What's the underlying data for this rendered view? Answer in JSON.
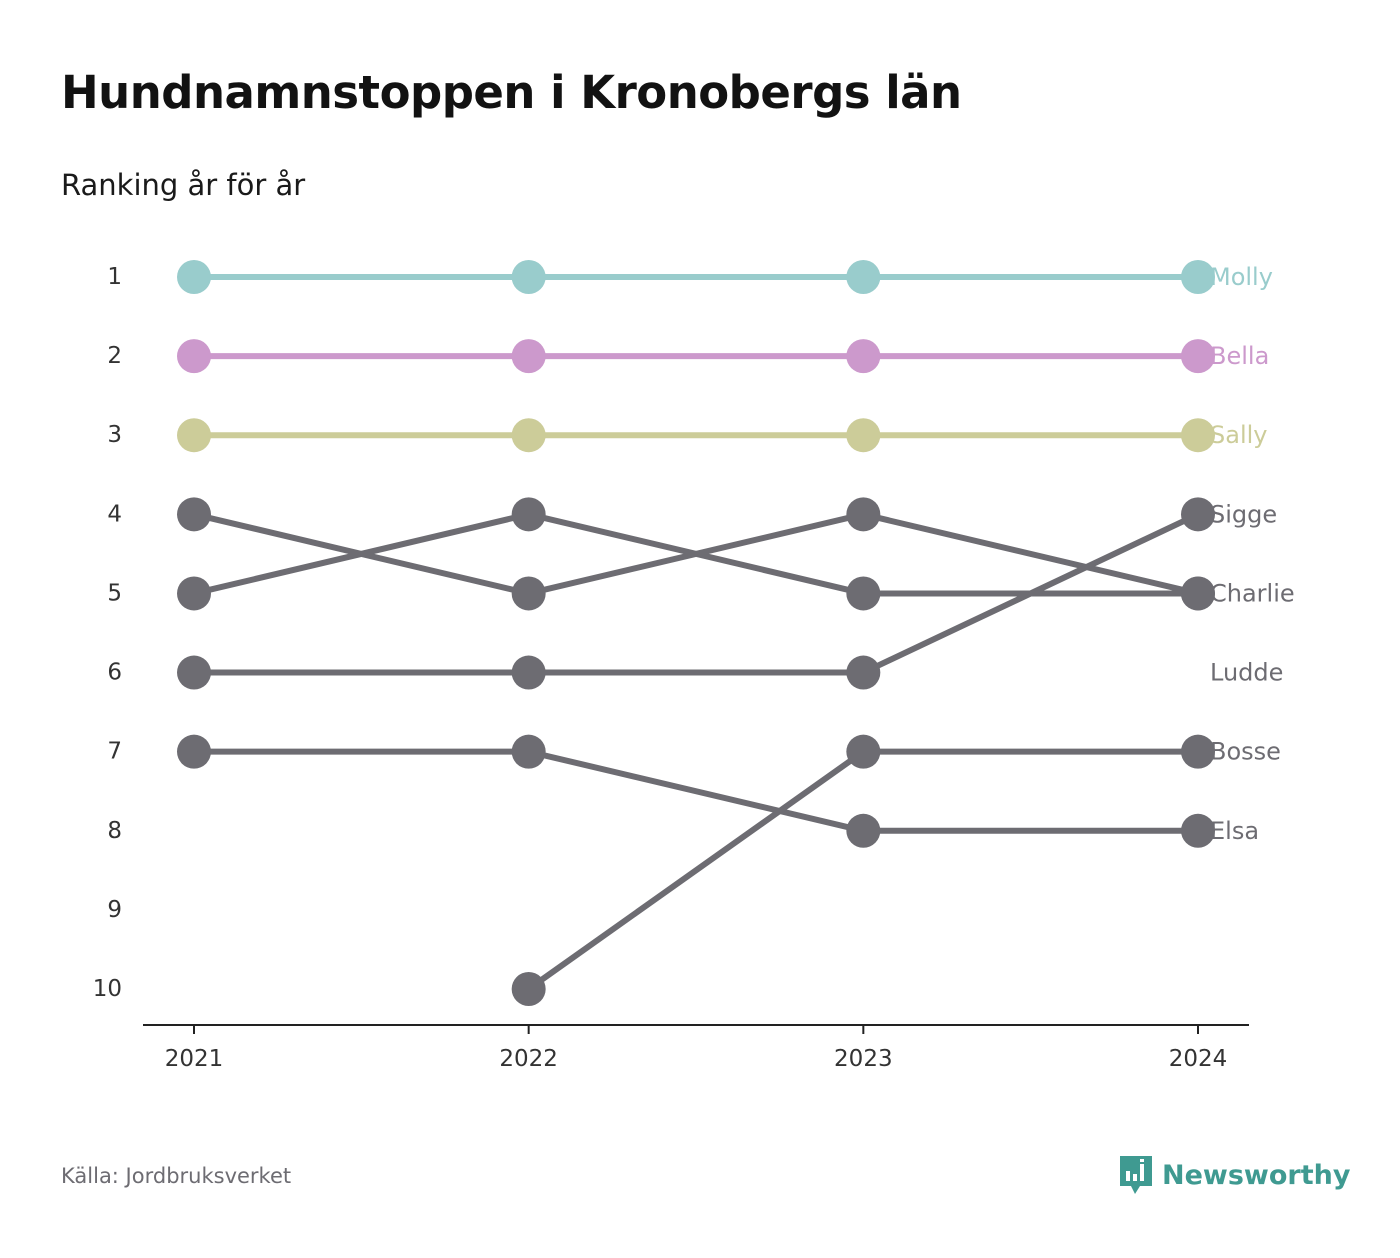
{
  "header": {
    "title": "Hundnamnstoppen i Kronobergs län",
    "subtitle": "Ranking år för år"
  },
  "footer": {
    "source": "Källa: Jordbruksverket",
    "brand": "Newsworthy",
    "brand_icon": "newsworthy-logo-icon",
    "brand_color": "#3f9a91"
  },
  "chart_data": {
    "type": "line",
    "x": [
      "2021",
      "2022",
      "2023",
      "2024"
    ],
    "y_ticks": [
      "1",
      "2",
      "3",
      "4",
      "5",
      "6",
      "7",
      "8",
      "9",
      "10"
    ],
    "ylim": [
      1,
      10
    ],
    "y_reversed": true,
    "grid": false,
    "series": [
      {
        "name": "Molly",
        "color": "#99cccc",
        "values": [
          1,
          1,
          1,
          1
        ]
      },
      {
        "name": "Bella",
        "color": "#cc99cc",
        "values": [
          2,
          2,
          2,
          2
        ]
      },
      {
        "name": "Sally",
        "color": "#cccc99",
        "values": [
          3,
          3,
          3,
          3
        ]
      },
      {
        "name": "Sigge",
        "color": "#6d6c72",
        "values": [
          6,
          6,
          6,
          4
        ]
      },
      {
        "name": "Charlie",
        "color": "#6d6c72",
        "values": [
          4,
          5,
          4,
          5
        ]
      },
      {
        "name": "Ludde",
        "color": "#6d6c72",
        "values": [
          5,
          4,
          5,
          5
        ]
      },
      {
        "name": "Bosse",
        "color": "#6d6c72",
        "values": [
          null,
          10,
          7,
          7
        ]
      },
      {
        "name": "Elsa",
        "color": "#6d6c72",
        "values": [
          7,
          7,
          8,
          8
        ]
      }
    ],
    "end_labels": [
      {
        "text": "Molly",
        "rank": 1,
        "color": "#99cccc"
      },
      {
        "text": "Bella",
        "rank": 2,
        "color": "#cc99cc"
      },
      {
        "text": "Sally",
        "rank": 3,
        "color": "#cccc99"
      },
      {
        "text": "Sigge",
        "rank": 4,
        "color": "#6d6c72"
      },
      {
        "text": "Charlie",
        "rank": 5,
        "color": "#6d6c72"
      },
      {
        "text": "Ludde",
        "rank": 6,
        "color": "#6d6c72"
      },
      {
        "text": "Bosse",
        "rank": 7,
        "color": "#6d6c72"
      },
      {
        "text": "Elsa",
        "rank": 8,
        "color": "#6d6c72"
      }
    ]
  }
}
